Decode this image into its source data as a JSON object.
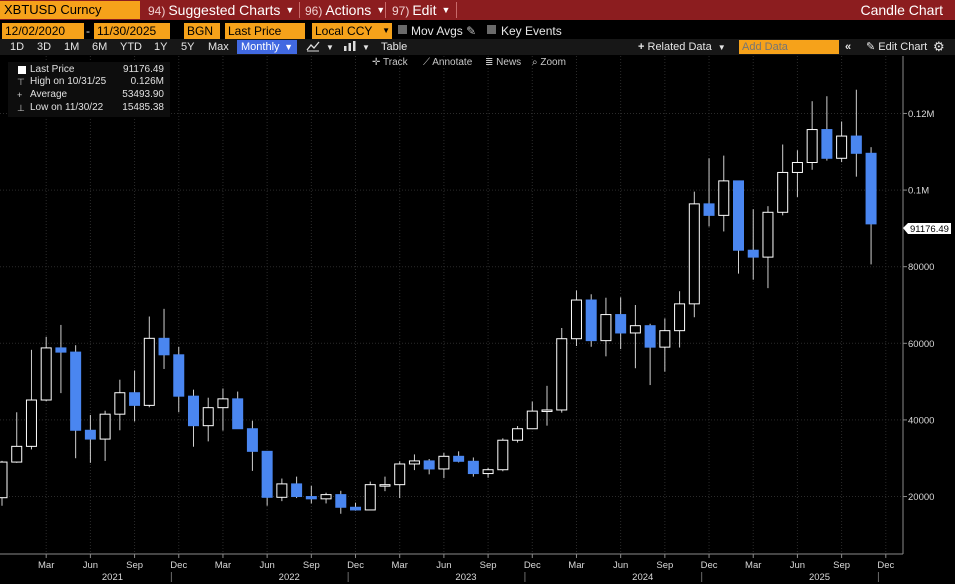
{
  "titlebar": {
    "ticker": "XBTUSD Curncy",
    "suggested": {
      "num": "94)",
      "label": "Suggested Charts"
    },
    "actions": {
      "num": "96)",
      "label": "Actions"
    },
    "edit": {
      "num": "97)",
      "label": "Edit"
    },
    "chart_type": "Candle Chart"
  },
  "settings": {
    "start_date": "12/02/2020",
    "end_date": "11/30/2025",
    "source": "BGN",
    "field": "Last Price",
    "currency": "Local CCY",
    "mov_avgs": "Mov Avgs",
    "key_events": "Key Events"
  },
  "ranges": {
    "items": [
      "1D",
      "3D",
      "1M",
      "6M",
      "YTD",
      "1Y",
      "5Y",
      "Max"
    ],
    "period": "Monthly",
    "table": "Table",
    "related": "Related Data",
    "add_data_placeholder": "Add Data",
    "edit_chart": "Edit Chart"
  },
  "tools": {
    "track": "Track",
    "annotate": "Annotate",
    "news": "News",
    "zoom": "Zoom"
  },
  "legend": {
    "last_label": "Last Price",
    "last_value": "91176.49",
    "high_label": "High on 10/31/25",
    "high_value": "0.126M",
    "avg_label": "Average",
    "avg_value": "53493.90",
    "low_label": "Low on 11/30/22",
    "low_value": "15485.38"
  },
  "colors": {
    "up": "#ffffff",
    "down": "#4a86f0",
    "background": "#000000",
    "title_bar": "#8c1d1f",
    "field": "#f6a21a"
  },
  "chart_data": {
    "type": "candlestick",
    "x_tick_labels": [
      "Mar",
      "Jun",
      "Sep",
      "Dec",
      "Mar",
      "Jun",
      "Sep",
      "Dec",
      "Mar",
      "Jun",
      "Sep",
      "Dec",
      "Mar",
      "Jun",
      "Sep",
      "Dec",
      "Mar",
      "Jun",
      "Sep",
      "Dec"
    ],
    "years": [
      "2021",
      "2022",
      "2023",
      "2024",
      "2025"
    ],
    "y_ticks": [
      20000,
      40000,
      60000,
      80000,
      100000,
      120000
    ],
    "y_tick_labels": [
      "20000",
      "40000",
      "60000",
      "80000",
      "0.1M",
      "0.12M"
    ],
    "y_range": [
      5000,
      135000
    ],
    "last_value_label": "91176.49",
    "last_value": 91176.49,
    "candles": [
      {
        "t": "2020-12",
        "o": 19700,
        "h": 29300,
        "l": 17600,
        "c": 29000
      },
      {
        "t": "2021-01",
        "o": 29000,
        "h": 42000,
        "l": 28800,
        "c": 33100
      },
      {
        "t": "2021-02",
        "o": 33100,
        "h": 58300,
        "l": 32300,
        "c": 45200
      },
      {
        "t": "2021-03",
        "o": 45200,
        "h": 61700,
        "l": 44900,
        "c": 58800
      },
      {
        "t": "2021-04",
        "o": 58800,
        "h": 64800,
        "l": 47000,
        "c": 57700
      },
      {
        "t": "2021-05",
        "o": 57700,
        "h": 59500,
        "l": 30000,
        "c": 37300
      },
      {
        "t": "2021-06",
        "o": 37300,
        "h": 41300,
        "l": 28800,
        "c": 35000
      },
      {
        "t": "2021-07",
        "o": 35000,
        "h": 42400,
        "l": 29300,
        "c": 41500
      },
      {
        "t": "2021-08",
        "o": 41500,
        "h": 50500,
        "l": 37300,
        "c": 47100
      },
      {
        "t": "2021-09",
        "o": 47100,
        "h": 52900,
        "l": 39600,
        "c": 43800
      },
      {
        "t": "2021-10",
        "o": 43800,
        "h": 67000,
        "l": 43300,
        "c": 61300
      },
      {
        "t": "2021-11",
        "o": 61300,
        "h": 69000,
        "l": 53300,
        "c": 57000
      },
      {
        "t": "2021-12",
        "o": 57000,
        "h": 59100,
        "l": 42000,
        "c": 46200
      },
      {
        "t": "2022-01",
        "o": 46200,
        "h": 47900,
        "l": 33000,
        "c": 38500
      },
      {
        "t": "2022-02",
        "o": 38500,
        "h": 45800,
        "l": 34400,
        "c": 43200
      },
      {
        "t": "2022-03",
        "o": 43200,
        "h": 48200,
        "l": 37200,
        "c": 45500
      },
      {
        "t": "2022-04",
        "o": 45500,
        "h": 47400,
        "l": 37700,
        "c": 37700
      },
      {
        "t": "2022-05",
        "o": 37700,
        "h": 39800,
        "l": 26700,
        "c": 31800
      },
      {
        "t": "2022-06",
        "o": 31800,
        "h": 31900,
        "l": 17600,
        "c": 19800
      },
      {
        "t": "2022-07",
        "o": 19800,
        "h": 24700,
        "l": 18800,
        "c": 23300
      },
      {
        "t": "2022-08",
        "o": 23300,
        "h": 25200,
        "l": 19600,
        "c": 20000
      },
      {
        "t": "2022-09",
        "o": 20000,
        "h": 22800,
        "l": 18200,
        "c": 19400
      },
      {
        "t": "2022-10",
        "o": 19400,
        "h": 21000,
        "l": 18200,
        "c": 20500
      },
      {
        "t": "2022-11",
        "o": 20500,
        "h": 21500,
        "l": 15500,
        "c": 17200
      },
      {
        "t": "2022-12",
        "o": 17200,
        "h": 18400,
        "l": 16300,
        "c": 16500
      },
      {
        "t": "2023-01",
        "o": 16500,
        "h": 23900,
        "l": 16500,
        "c": 23100
      },
      {
        "t": "2023-02",
        "o": 23100,
        "h": 25200,
        "l": 21400,
        "c": 23100
      },
      {
        "t": "2023-03",
        "o": 23100,
        "h": 29200,
        "l": 19600,
        "c": 28500
      },
      {
        "t": "2023-04",
        "o": 28500,
        "h": 31000,
        "l": 26900,
        "c": 29300
      },
      {
        "t": "2023-05",
        "o": 29300,
        "h": 29800,
        "l": 25800,
        "c": 27200
      },
      {
        "t": "2023-06",
        "o": 27200,
        "h": 31400,
        "l": 24800,
        "c": 30500
      },
      {
        "t": "2023-07",
        "o": 30500,
        "h": 31800,
        "l": 28900,
        "c": 29200
      },
      {
        "t": "2023-08",
        "o": 29200,
        "h": 30200,
        "l": 25200,
        "c": 26000
      },
      {
        "t": "2023-09",
        "o": 26000,
        "h": 27500,
        "l": 24900,
        "c": 27000
      },
      {
        "t": "2023-10",
        "o": 27000,
        "h": 35200,
        "l": 26600,
        "c": 34700
      },
      {
        "t": "2023-11",
        "o": 34700,
        "h": 38400,
        "l": 34100,
        "c": 37700
      },
      {
        "t": "2023-12",
        "o": 37700,
        "h": 44800,
        "l": 37600,
        "c": 42300
      },
      {
        "t": "2024-01",
        "o": 42300,
        "h": 48900,
        "l": 38500,
        "c": 42600
      },
      {
        "t": "2024-02",
        "o": 42600,
        "h": 64000,
        "l": 41900,
        "c": 61200
      },
      {
        "t": "2024-03",
        "o": 61200,
        "h": 73800,
        "l": 59300,
        "c": 71300
      },
      {
        "t": "2024-04",
        "o": 71300,
        "h": 72800,
        "l": 59100,
        "c": 60700
      },
      {
        "t": "2024-05",
        "o": 60700,
        "h": 71900,
        "l": 56600,
        "c": 67500
      },
      {
        "t": "2024-06",
        "o": 67500,
        "h": 72000,
        "l": 58500,
        "c": 62700
      },
      {
        "t": "2024-07",
        "o": 62700,
        "h": 70000,
        "l": 53500,
        "c": 64600
      },
      {
        "t": "2024-08",
        "o": 64600,
        "h": 65100,
        "l": 49100,
        "c": 59000
      },
      {
        "t": "2024-09",
        "o": 59000,
        "h": 66500,
        "l": 52600,
        "c": 63300
      },
      {
        "t": "2024-10",
        "o": 63300,
        "h": 73600,
        "l": 58900,
        "c": 70300
      },
      {
        "t": "2024-11",
        "o": 70300,
        "h": 99600,
        "l": 66800,
        "c": 96400
      },
      {
        "t": "2024-12",
        "o": 96400,
        "h": 108300,
        "l": 90500,
        "c": 93400
      },
      {
        "t": "2025-01",
        "o": 93400,
        "h": 109000,
        "l": 89200,
        "c": 102400
      },
      {
        "t": "2025-02",
        "o": 102400,
        "h": 102500,
        "l": 78200,
        "c": 84300
      },
      {
        "t": "2025-03",
        "o": 84300,
        "h": 95000,
        "l": 76600,
        "c": 82500
      },
      {
        "t": "2025-04",
        "o": 82500,
        "h": 95800,
        "l": 74400,
        "c": 94200
      },
      {
        "t": "2025-05",
        "o": 94200,
        "h": 111900,
        "l": 93400,
        "c": 104600
      },
      {
        "t": "2025-06",
        "o": 104600,
        "h": 110400,
        "l": 98200,
        "c": 107200
      },
      {
        "t": "2025-07",
        "o": 107200,
        "h": 123200,
        "l": 105300,
        "c": 115800
      },
      {
        "t": "2025-08",
        "o": 115800,
        "h": 124500,
        "l": 107700,
        "c": 108300
      },
      {
        "t": "2025-09",
        "o": 108300,
        "h": 117900,
        "l": 107300,
        "c": 114100
      },
      {
        "t": "2025-10",
        "o": 114100,
        "h": 126200,
        "l": 103500,
        "c": 109600
      },
      {
        "t": "2025-11",
        "o": 109600,
        "h": 111200,
        "l": 80600,
        "c": 91176.49
      }
    ]
  }
}
